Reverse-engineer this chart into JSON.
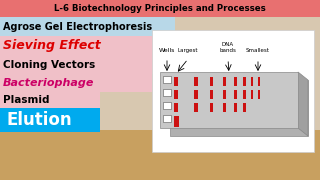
{
  "title_text": "L-6 Biotechnology Principles and Processes",
  "title_bg": "#e87070",
  "title_color": "#000000",
  "line1_text": "Agrose Gel Electrophoresis",
  "line1_bg": "#b8d8e8",
  "line1_color": "#000000",
  "line2_text": "Sieving Effect",
  "line2_bg": "#f0c0c8",
  "line2_color": "#dd0000",
  "line3_text": "Cloning Vectors",
  "line3_bg": "#f0c0c8",
  "line3_color": "#000000",
  "line4_text": "Bacteriophage",
  "line4_bg": "#f0c0c8",
  "line4_color": "#cc0066",
  "line5_text": "Plasmid",
  "line5_bg": "#f0c0c8",
  "line5_color": "#000000",
  "line6_text": "Elution",
  "line6_bg": "#00aaee",
  "line6_color": "#ffffff",
  "bg_room": "#d8c8b0",
  "bg_floor": "#c8a060",
  "diagram_bg": "#ffffff",
  "gel_top": "#c8c8c8",
  "gel_side": "#a0a0a0",
  "gel_bottom_face": "#b0b0b0",
  "band_color": "#cc1111",
  "well_color": "#ffffff",
  "label_color": "#000000"
}
